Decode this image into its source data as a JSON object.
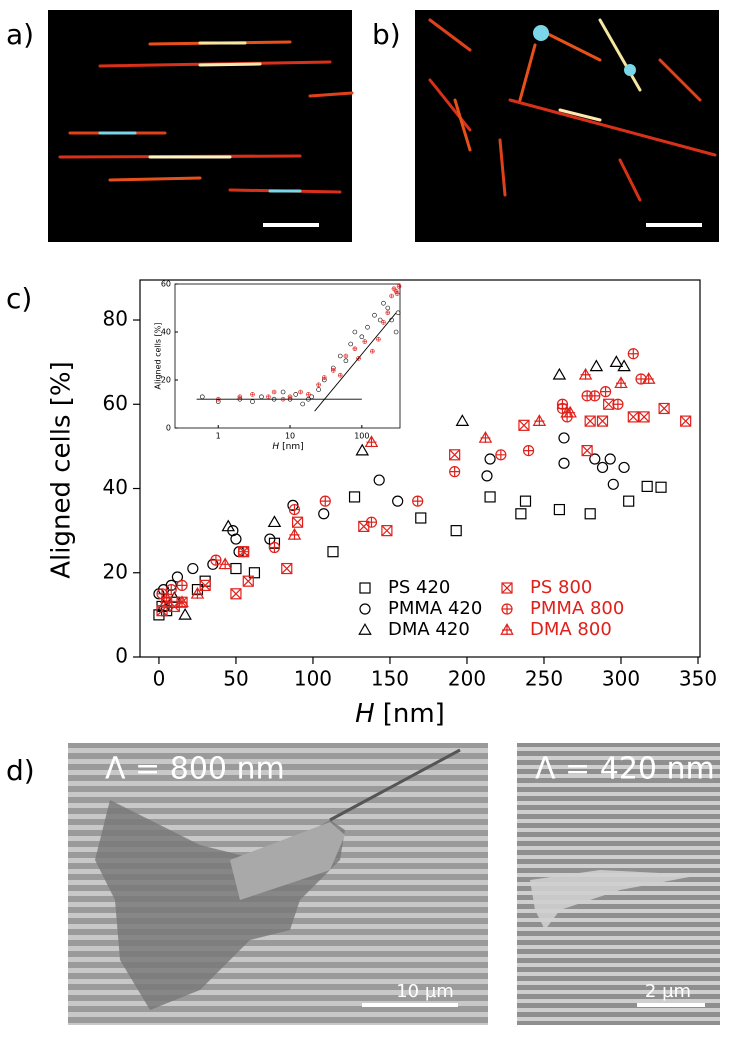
{
  "panel_labels": {
    "a": "a)",
    "b": "b)",
    "c": "c)",
    "d": "d)"
  },
  "panel_d": {
    "left_label": "Λ = 800 nm",
    "left_scale": "10 µm",
    "right_label": "Λ = 420 nm",
    "right_scale": "2 µm"
  },
  "chart_data": {
    "type": "scatter",
    "y_label": "Aligned cells [%]",
    "x_label_var": "H",
    "x_label_unit": "[nm]",
    "xlim": [
      -12.3,
      351.3
    ],
    "ylim": [
      0,
      89.5
    ],
    "xticks": [
      0,
      50,
      100,
      150,
      200,
      250,
      300,
      350
    ],
    "yticks": [
      0,
      20,
      40,
      60,
      80
    ],
    "legend": "lower right",
    "series": [
      {
        "name": "PS 420",
        "color": "#000000",
        "marker": "square",
        "inner": "none",
        "x": [
          0,
          2,
          5,
          10,
          25,
          30,
          50,
          62,
          75,
          113,
          127,
          170,
          193,
          215,
          235,
          238,
          260,
          280,
          305,
          317,
          326
        ],
        "values": [
          10,
          12,
          11,
          13,
          16,
          18,
          21,
          20,
          27,
          25,
          38,
          33,
          30,
          38,
          34,
          37,
          35,
          34,
          37,
          40.5,
          40.3
        ]
      },
      {
        "name": "PMMA 420",
        "color": "#000000",
        "marker": "circle",
        "inner": "none",
        "x": [
          0,
          3,
          8,
          12,
          22,
          35,
          48,
          50,
          52,
          72,
          87,
          107,
          143,
          155,
          213,
          215,
          263,
          263,
          283,
          288,
          293,
          295,
          302
        ],
        "values": [
          15,
          16,
          17,
          19,
          21,
          22,
          30,
          28,
          25,
          28,
          36,
          34,
          42,
          37,
          43,
          47,
          46,
          52,
          47,
          45,
          47,
          41,
          45
        ]
      },
      {
        "name": "DMA 420",
        "color": "#000000",
        "marker": "triangle",
        "inner": "none",
        "x": [
          3,
          10,
          17,
          45,
          75,
          132,
          197,
          260,
          284,
          297,
          302
        ],
        "values": [
          12,
          14,
          10,
          31,
          32,
          49,
          56,
          67,
          69,
          70,
          69
        ]
      },
      {
        "name": "PS 800",
        "color": "#e0201b",
        "marker": "square",
        "inner": "x",
        "x": [
          2,
          5,
          10,
          15,
          30,
          50,
          55,
          58,
          83,
          90,
          133,
          148,
          192,
          237,
          278,
          280,
          288,
          292,
          308,
          315,
          328,
          342
        ],
        "values": [
          11,
          13,
          12,
          13,
          17,
          15,
          25,
          18,
          21,
          32,
          31,
          30,
          48,
          55,
          49,
          56,
          56,
          60,
          57,
          57,
          59,
          56
        ]
      },
      {
        "name": "PMMA 800",
        "color": "#e0201b",
        "marker": "circle",
        "inner": "plus",
        "x": [
          2,
          8,
          15,
          37,
          55,
          75,
          88,
          108,
          138,
          168,
          192,
          222,
          240,
          262,
          265,
          278,
          283,
          290,
          298,
          308,
          313,
          262
        ],
        "values": [
          15,
          16,
          17,
          23,
          25,
          26,
          35,
          37,
          32,
          37,
          44,
          48,
          49,
          59,
          57,
          62,
          62,
          63,
          60,
          72,
          66,
          60
        ]
      },
      {
        "name": "DMA 800",
        "color": "#e0201b",
        "marker": "triangle",
        "inner": "plus",
        "x": [
          5,
          15,
          25,
          43,
          88,
          138,
          212,
          247,
          267,
          277,
          300,
          318,
          265
        ],
        "values": [
          14,
          13,
          15,
          22,
          29,
          51,
          52,
          56,
          58,
          67,
          65,
          66,
          58
        ]
      }
    ],
    "inset": {
      "y_label": "Aligned cells [%]",
      "x_label_var": "H",
      "x_label_unit": "[nm]",
      "xscale": "log",
      "xlim": [
        0.25,
        340
      ],
      "ylim": [
        0,
        60
      ],
      "xticks": [
        1,
        10,
        100
      ],
      "yticks": [
        0,
        20,
        40,
        60
      ],
      "series": [
        {
          "color": "#000000",
          "marker": "circle",
          "inner": "none",
          "x": [
            0.6,
            1,
            2,
            3,
            4,
            6,
            8,
            10,
            12,
            15,
            18,
            20,
            25,
            30,
            40,
            50,
            60,
            70,
            80,
            100,
            120,
            150,
            180,
            200,
            230,
            260,
            300,
            320
          ],
          "values": [
            13,
            11,
            12,
            11,
            13,
            12,
            15,
            12,
            14,
            10,
            12,
            13,
            16,
            20,
            25,
            30,
            28,
            35,
            40,
            38,
            42,
            47,
            45,
            52,
            50,
            45,
            40,
            48
          ]
        },
        {
          "color": "#e0201b",
          "marker": "circle",
          "inner": "plus",
          "x": [
            1,
            2,
            3,
            5,
            6,
            8,
            10,
            14,
            18,
            25,
            30,
            40,
            50,
            60,
            80,
            90,
            110,
            140,
            170,
            200,
            230,
            260,
            280,
            300,
            330,
            310
          ],
          "values": [
            12,
            13,
            14,
            13,
            15,
            12,
            13,
            15,
            14,
            18,
            21,
            24,
            22,
            30,
            33,
            29,
            36,
            32,
            37,
            44,
            48,
            55,
            58,
            57,
            59,
            56
          ]
        }
      ],
      "fit_lines": [
        {
          "x": [
            0.5,
            100
          ],
          "values": [
            12,
            12
          ]
        },
        {
          "x": [
            22,
            300
          ],
          "values": [
            7,
            48
          ]
        }
      ]
    }
  }
}
